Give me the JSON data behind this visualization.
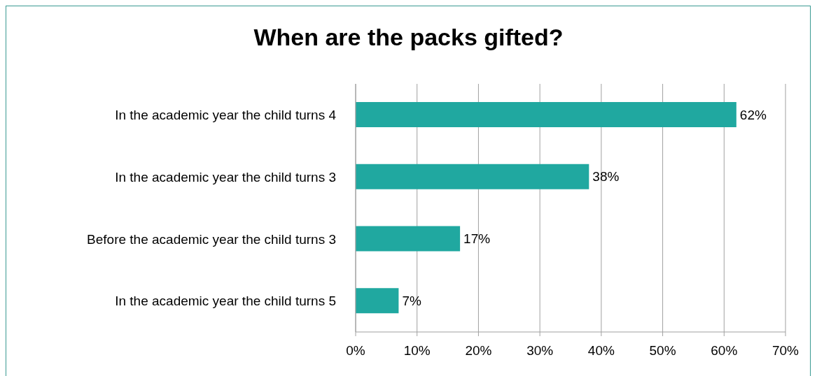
{
  "chart_data": {
    "type": "bar",
    "orientation": "horizontal",
    "title": "When are the packs gifted?",
    "categories": [
      "In the academic year the child turns 4",
      "In the academic year the child turns 3",
      "Before the academic year the child turns 3",
      "In the academic year the child turns 5"
    ],
    "values": [
      62,
      38,
      17,
      7
    ],
    "value_labels": [
      "62%",
      "38%",
      "17%",
      "7%"
    ],
    "color": "#20a8a0",
    "xlim": [
      0,
      70
    ],
    "xticks": [
      {
        "value": 0,
        "label": "0%"
      },
      {
        "value": 10,
        "label": "10%"
      },
      {
        "value": 20,
        "label": "20%"
      },
      {
        "value": 30,
        "label": "30%"
      },
      {
        "value": 40,
        "label": "40%"
      },
      {
        "value": 50,
        "label": "50%"
      },
      {
        "value": 60,
        "label": "60%"
      },
      {
        "value": 70,
        "label": "70%"
      }
    ],
    "grid": "x"
  }
}
